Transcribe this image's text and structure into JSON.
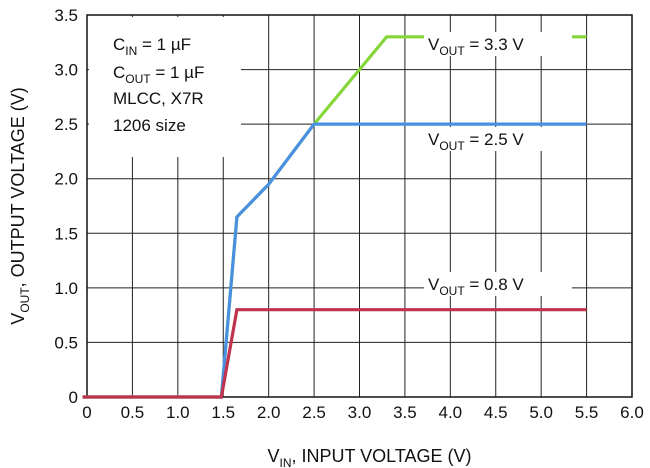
{
  "chart_data": {
    "type": "line",
    "xlabel": {
      "main": "V",
      "sub": "IN",
      "rest": ", INPUT VOLTAGE (V)"
    },
    "ylabel": {
      "main": "V",
      "sub": "OUT",
      "rest": ", OUTPUT VOLTAGE (V)"
    },
    "xlim": [
      0,
      6.0
    ],
    "ylim": [
      0,
      3.5
    ],
    "x_ticks": [
      "0",
      "0.5",
      "1.0",
      "1.5",
      "2.0",
      "2.5",
      "3.0",
      "3.5",
      "4.0",
      "4.5",
      "5.0",
      "5.5",
      "6.0"
    ],
    "y_ticks": [
      "0",
      "0.5",
      "1.0",
      "1.5",
      "2.0",
      "2.5",
      "3.0",
      "3.5"
    ],
    "grid": true,
    "series": [
      {
        "label": {
          "main": "V",
          "sub": "OUT",
          "rest": " = 3.3 V"
        },
        "color": "#86d63a",
        "x": [
          -0.05,
          0.45,
          1.48,
          1.65,
          2.0,
          2.5,
          3.3,
          5.5
        ],
        "y": [
          0.0,
          0.0,
          0.0,
          1.65,
          1.95,
          2.5,
          3.3,
          3.3
        ]
      },
      {
        "label": {
          "main": "V",
          "sub": "OUT",
          "rest": " = 2.5 V"
        },
        "color": "#4a90e2",
        "x": [
          -0.05,
          0.45,
          1.48,
          1.65,
          2.0,
          2.5,
          5.5
        ],
        "y": [
          0.0,
          0.0,
          0.0,
          1.65,
          1.95,
          2.5,
          2.5
        ]
      },
      {
        "label": {
          "main": "V",
          "sub": "OUT",
          "rest": " = 0.8 V"
        },
        "color": "#c0334d",
        "x": [
          -0.05,
          0.45,
          1.48,
          1.65,
          5.5
        ],
        "y": [
          0.0,
          0.0,
          0.0,
          0.8,
          0.8
        ]
      }
    ],
    "annotations": [
      {
        "main": "C",
        "sub": "IN",
        "rest": " = 1 µF"
      },
      {
        "main": "C",
        "sub": "OUT",
        "rest": " = 1 µF"
      },
      {
        "main": "MLCC, X7R",
        "sub": "",
        "rest": ""
      },
      {
        "main": "1206 size",
        "sub": "",
        "rest": ""
      }
    ]
  }
}
